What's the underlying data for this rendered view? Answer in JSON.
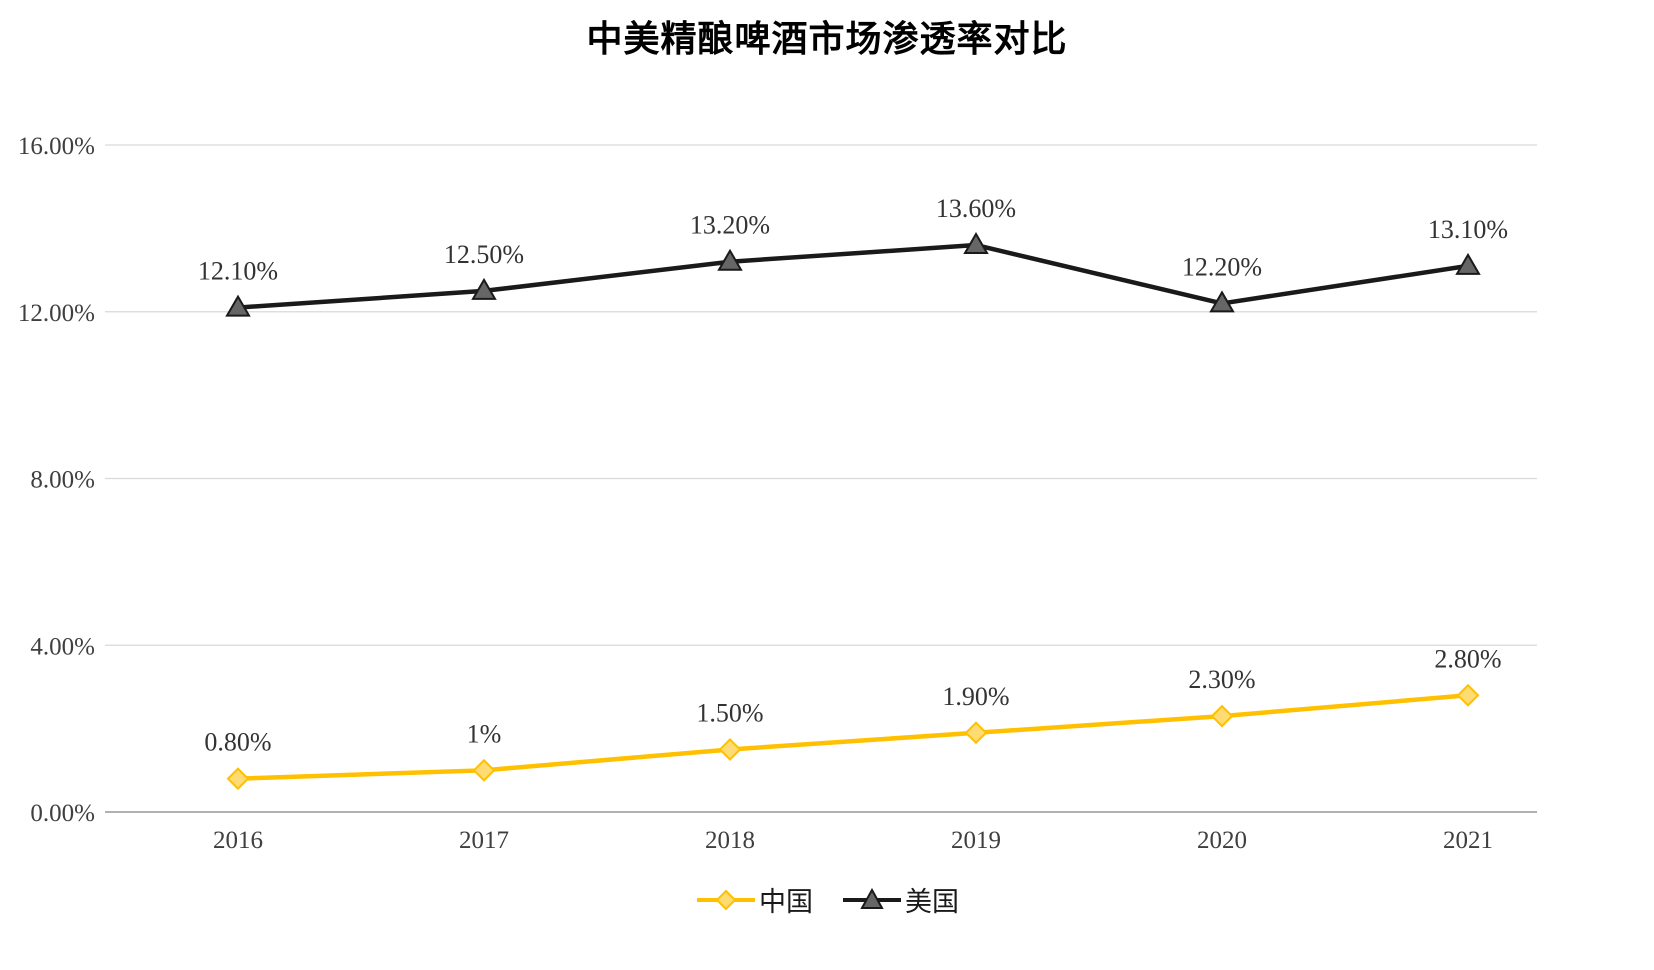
{
  "chart_data": {
    "type": "line",
    "title": "中美精酿啤酒市场渗透率对比",
    "categories": [
      "2016",
      "2017",
      "2018",
      "2019",
      "2020",
      "2021"
    ],
    "series": [
      {
        "name": "中国",
        "values": [
          0.8,
          1.0,
          1.5,
          1.9,
          2.3,
          2.8
        ],
        "labels": [
          "0.80%",
          "1%",
          "1.50%",
          "1.90%",
          "2.30%",
          "2.80%"
        ],
        "color": "#FFC000",
        "marker": "diamond",
        "marker_fill": "#FFDC73"
      },
      {
        "name": "美国",
        "values": [
          12.1,
          12.5,
          13.2,
          13.6,
          12.2,
          13.1
        ],
        "labels": [
          "12.10%",
          "12.50%",
          "13.20%",
          "13.60%",
          "12.20%",
          "13.10%"
        ],
        "color": "#1A1A1A",
        "marker": "triangle",
        "marker_fill": "#666666"
      }
    ],
    "y_axis": {
      "min": 0,
      "max": 16,
      "step": 4,
      "tick_labels": [
        "0.00%",
        "4.00%",
        "8.00%",
        "12.00%",
        "16.00%"
      ]
    },
    "xlabel": "",
    "ylabel": "",
    "grid": "horizontal",
    "legend_position": "bottom",
    "style": {
      "grid_color": "#D9D9D9",
      "axis_color": "#A6A6A6",
      "tick_color": "#3F3F3F",
      "label_color": "#333333",
      "title_color": "#000000"
    }
  }
}
